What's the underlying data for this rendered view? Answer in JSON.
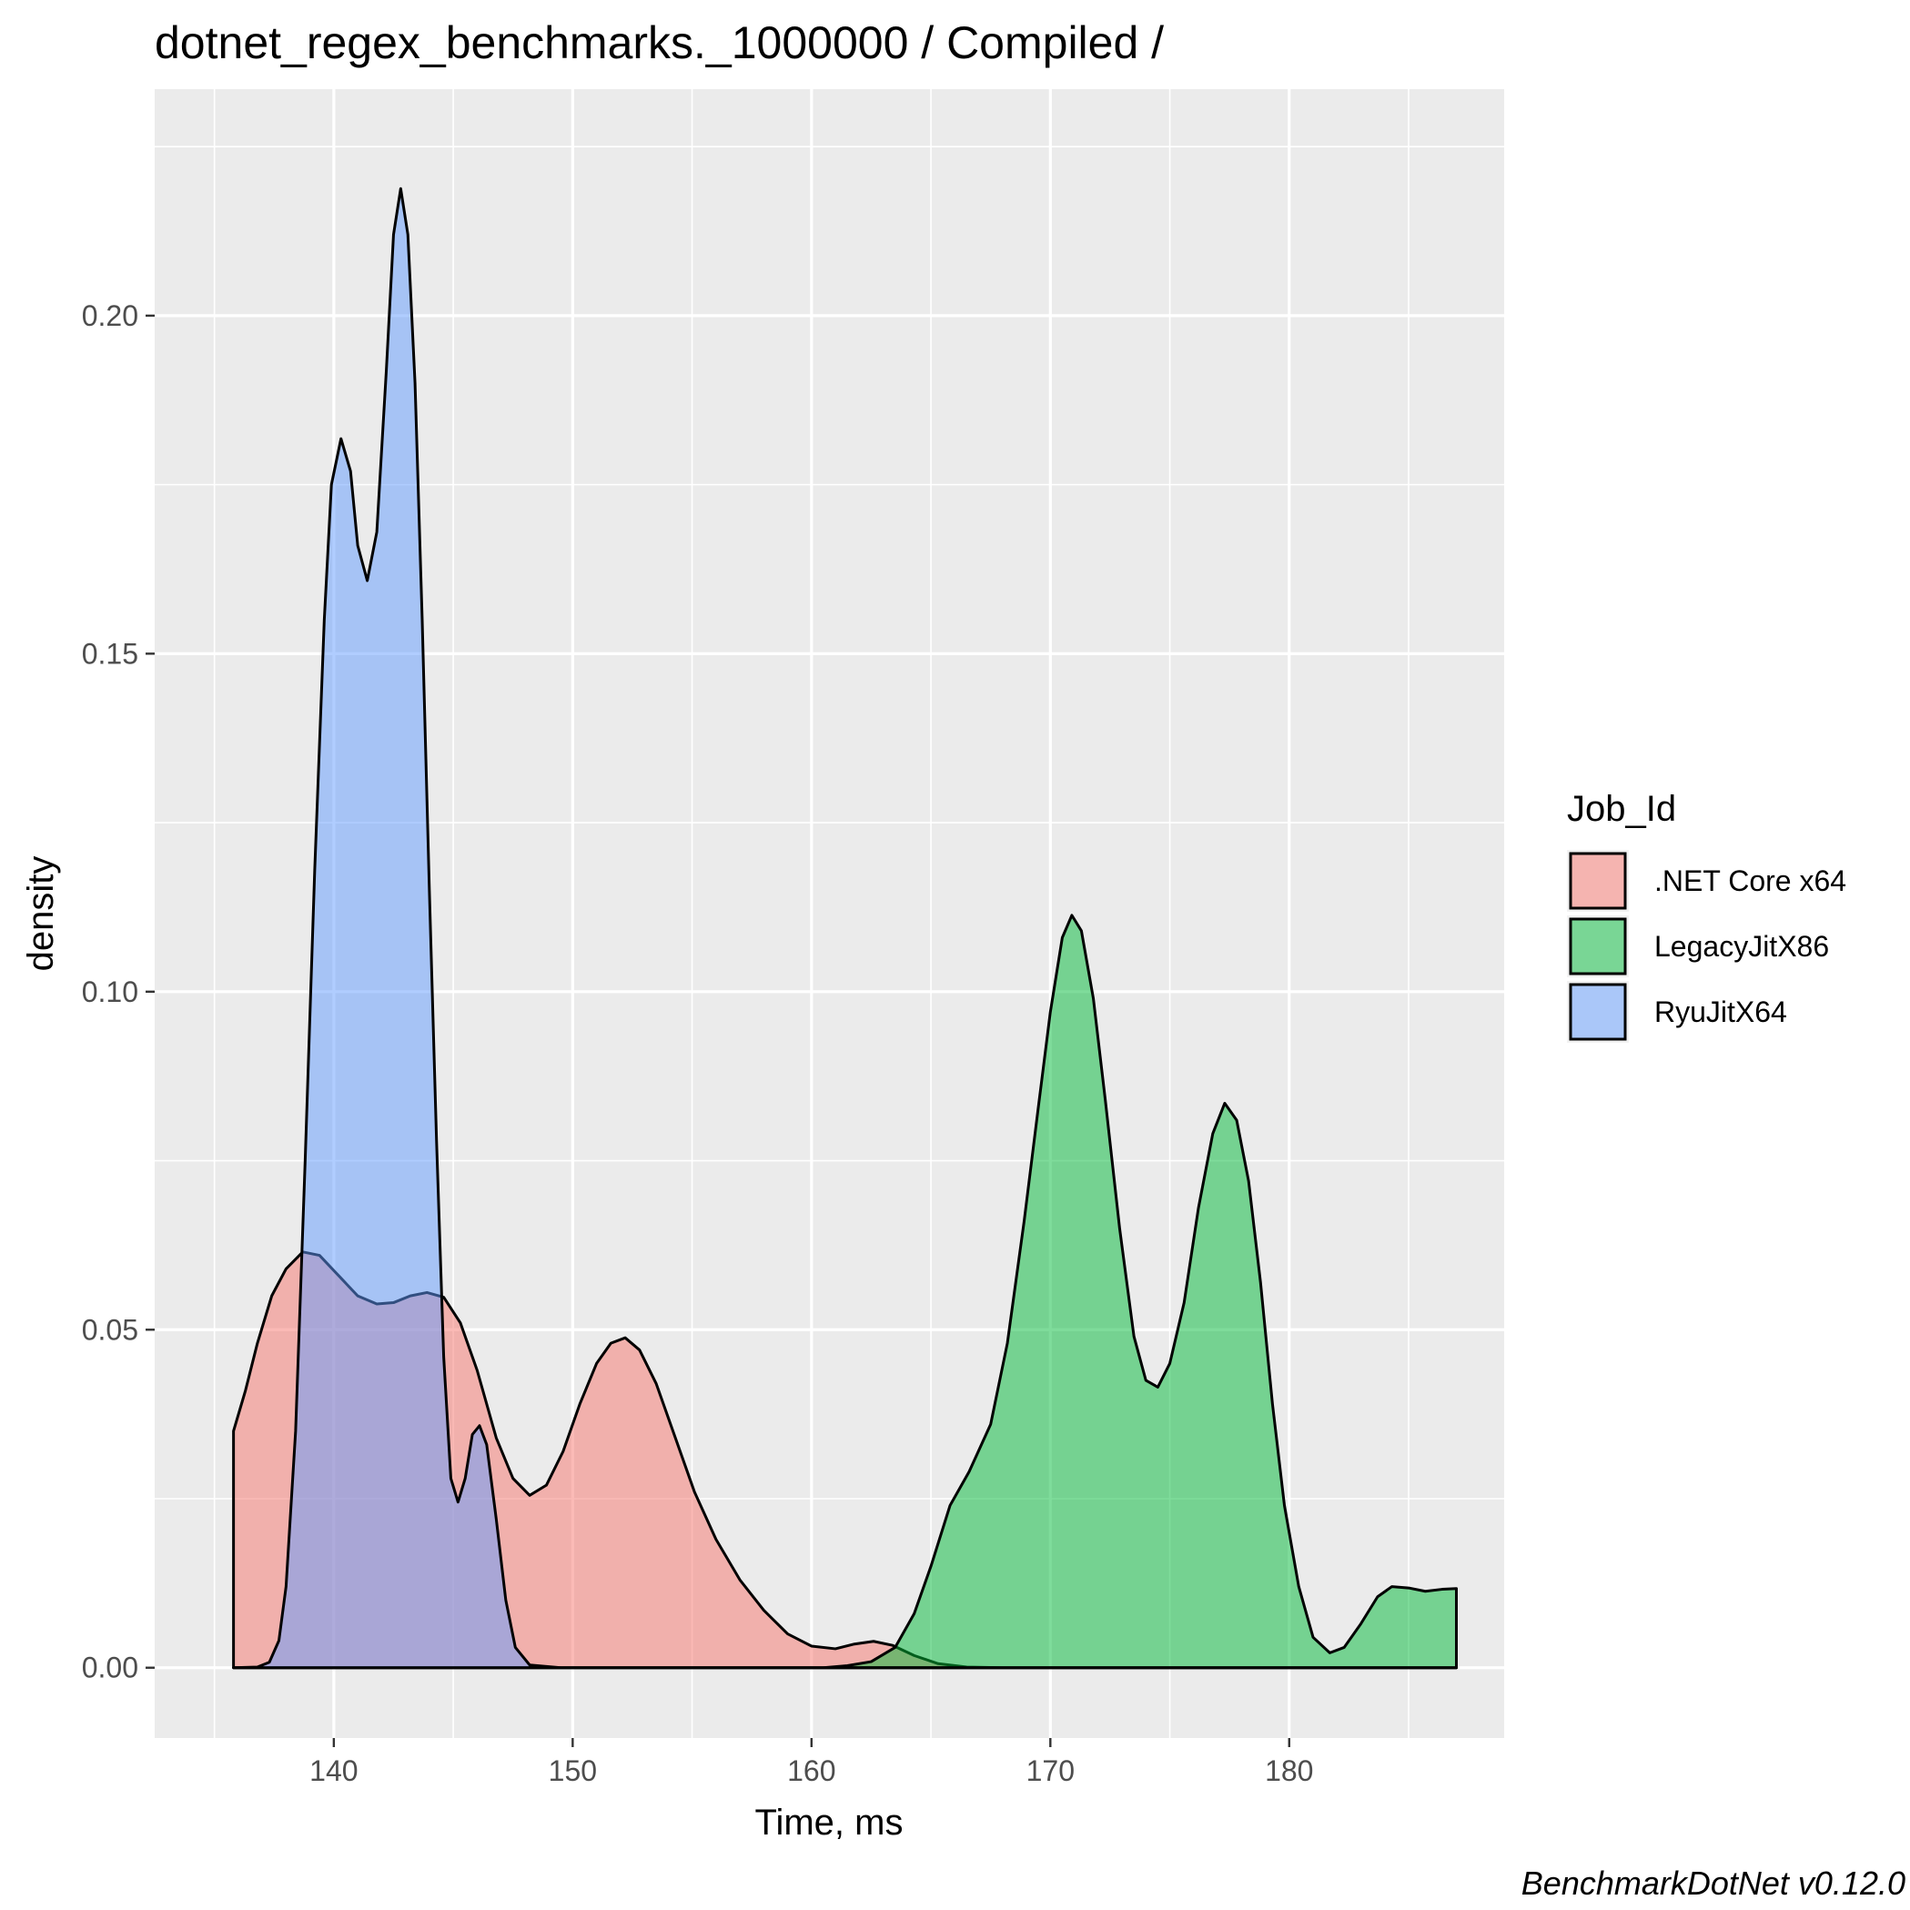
{
  "chart_data": {
    "type": "area",
    "title": "dotnet_regex_benchmarks._1000000 / Compiled /",
    "xlabel": "Time, ms",
    "ylabel": "density",
    "caption": "BenchmarkDotNet v0.12.0",
    "xlim": [
      132.5,
      189
    ],
    "ylim": [
      -0.0104,
      0.2335
    ],
    "x_ticks": [
      140,
      150,
      160,
      170,
      180
    ],
    "y_ticks": [
      0.0,
      0.05,
      0.1,
      0.15,
      0.2
    ],
    "x_tick_labels": [
      "140",
      "150",
      "160",
      "170",
      "180"
    ],
    "y_tick_labels": [
      "0.00",
      "0.05",
      "0.10",
      "0.15",
      "0.20"
    ],
    "grid": true,
    "legend": {
      "title": "Job_Id",
      "position": "right"
    },
    "series": [
      {
        "name": ".NET Core x64",
        "fill": "#F8766D",
        "points": [
          [
            135.8,
            0.0
          ],
          [
            135.8,
            0.035
          ],
          [
            136.3,
            0.041
          ],
          [
            136.8,
            0.048
          ],
          [
            137.4,
            0.055
          ],
          [
            138.0,
            0.059
          ],
          [
            138.7,
            0.0615
          ],
          [
            139.4,
            0.061
          ],
          [
            140.2,
            0.058
          ],
          [
            141.0,
            0.055
          ],
          [
            141.8,
            0.0538
          ],
          [
            142.5,
            0.054
          ],
          [
            143.2,
            0.055
          ],
          [
            143.9,
            0.0555
          ],
          [
            144.6,
            0.0548
          ],
          [
            145.3,
            0.051
          ],
          [
            146.0,
            0.044
          ],
          [
            146.8,
            0.034
          ],
          [
            147.5,
            0.028
          ],
          [
            148.2,
            0.0255
          ],
          [
            148.9,
            0.027
          ],
          [
            149.6,
            0.032
          ],
          [
            150.3,
            0.039
          ],
          [
            151.0,
            0.045
          ],
          [
            151.6,
            0.048
          ],
          [
            152.2,
            0.0488
          ],
          [
            152.8,
            0.047
          ],
          [
            153.5,
            0.042
          ],
          [
            154.3,
            0.034
          ],
          [
            155.1,
            0.026
          ],
          [
            156.0,
            0.019
          ],
          [
            157.0,
            0.013
          ],
          [
            158.0,
            0.0085
          ],
          [
            159.0,
            0.005
          ],
          [
            160.0,
            0.0032
          ],
          [
            161.0,
            0.0028
          ],
          [
            161.8,
            0.0035
          ],
          [
            162.6,
            0.0039
          ],
          [
            163.4,
            0.0033
          ],
          [
            164.3,
            0.0018
          ],
          [
            165.3,
            0.0006
          ],
          [
            166.5,
            0.0001
          ],
          [
            168.0,
            0.0
          ],
          [
            187.0,
            0.0
          ]
        ]
      },
      {
        "name": "LegacyJitX86",
        "fill": "#00BA38",
        "points": [
          [
            135.8,
            0.0
          ],
          [
            160.5,
            0.0
          ],
          [
            161.5,
            0.0003
          ],
          [
            162.5,
            0.0009
          ],
          [
            163.5,
            0.003
          ],
          [
            164.3,
            0.008
          ],
          [
            165.0,
            0.015
          ],
          [
            165.8,
            0.024
          ],
          [
            166.6,
            0.029
          ],
          [
            167.5,
            0.036
          ],
          [
            168.2,
            0.048
          ],
          [
            168.9,
            0.066
          ],
          [
            169.5,
            0.083
          ],
          [
            170.0,
            0.097
          ],
          [
            170.5,
            0.108
          ],
          [
            170.9,
            0.1113
          ],
          [
            171.3,
            0.109
          ],
          [
            171.8,
            0.099
          ],
          [
            172.3,
            0.084
          ],
          [
            172.9,
            0.065
          ],
          [
            173.5,
            0.049
          ],
          [
            174.0,
            0.0425
          ],
          [
            174.5,
            0.0415
          ],
          [
            175.0,
            0.045
          ],
          [
            175.6,
            0.054
          ],
          [
            176.2,
            0.068
          ],
          [
            176.8,
            0.079
          ],
          [
            177.3,
            0.0835
          ],
          [
            177.8,
            0.081
          ],
          [
            178.3,
            0.072
          ],
          [
            178.8,
            0.057
          ],
          [
            179.3,
            0.039
          ],
          [
            179.8,
            0.024
          ],
          [
            180.4,
            0.012
          ],
          [
            181.0,
            0.0045
          ],
          [
            181.7,
            0.0022
          ],
          [
            182.3,
            0.003
          ],
          [
            183.0,
            0.0065
          ],
          [
            183.7,
            0.0105
          ],
          [
            184.3,
            0.012
          ],
          [
            185.0,
            0.0118
          ],
          [
            185.7,
            0.0113
          ],
          [
            186.4,
            0.0116
          ],
          [
            187.0,
            0.0117
          ],
          [
            187.0,
            0.0
          ]
        ]
      },
      {
        "name": "RyuJitX64",
        "fill": "#619CFF",
        "points": [
          [
            135.8,
            0.0
          ],
          [
            136.8,
            0.0001
          ],
          [
            137.3,
            0.0008
          ],
          [
            137.7,
            0.004
          ],
          [
            138.0,
            0.012
          ],
          [
            138.4,
            0.035
          ],
          [
            138.8,
            0.075
          ],
          [
            139.2,
            0.118
          ],
          [
            139.6,
            0.155
          ],
          [
            139.9,
            0.175
          ],
          [
            140.3,
            0.1818
          ],
          [
            140.7,
            0.177
          ],
          [
            141.0,
            0.166
          ],
          [
            141.4,
            0.1608
          ],
          [
            141.8,
            0.168
          ],
          [
            142.2,
            0.192
          ],
          [
            142.5,
            0.212
          ],
          [
            142.8,
            0.2188
          ],
          [
            143.1,
            0.212
          ],
          [
            143.4,
            0.19
          ],
          [
            143.7,
            0.155
          ],
          [
            144.0,
            0.115
          ],
          [
            144.3,
            0.078
          ],
          [
            144.6,
            0.046
          ],
          [
            144.9,
            0.028
          ],
          [
            145.2,
            0.0245
          ],
          [
            145.5,
            0.028
          ],
          [
            145.8,
            0.0345
          ],
          [
            146.1,
            0.0358
          ],
          [
            146.4,
            0.033
          ],
          [
            146.8,
            0.022
          ],
          [
            147.2,
            0.01
          ],
          [
            147.6,
            0.003
          ],
          [
            148.2,
            0.0004
          ],
          [
            149.5,
            0.0
          ],
          [
            187.0,
            0.0
          ]
        ]
      }
    ]
  }
}
